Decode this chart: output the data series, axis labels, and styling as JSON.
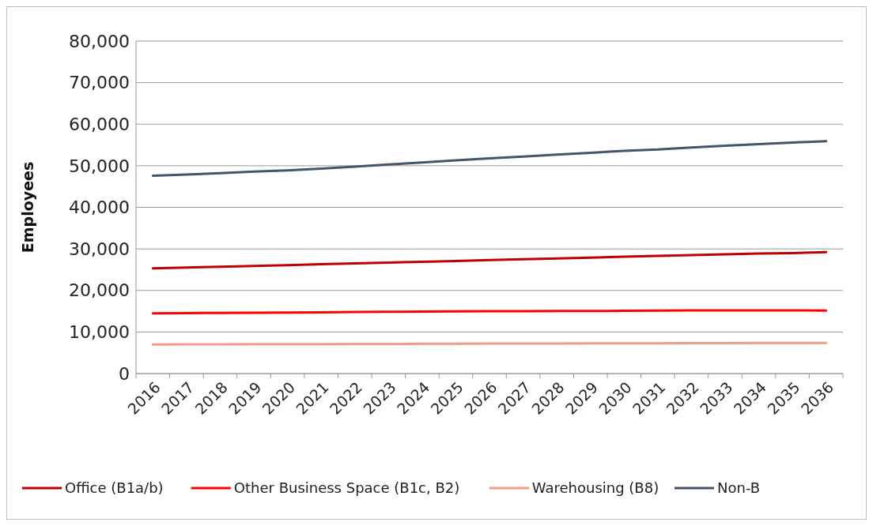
{
  "chart_data": {
    "type": "line",
    "ylabel": "Employees",
    "categories": [
      "2016",
      "2017",
      "2018",
      "2019",
      "2020",
      "2021",
      "2022",
      "2023",
      "2024",
      "2025",
      "2026",
      "2027",
      "2028",
      "2029",
      "2030",
      "2031",
      "2032",
      "2033",
      "2034",
      "2035",
      "2036"
    ],
    "series": [
      {
        "name": "Office (B1a/b)",
        "color": "#c00000",
        "values": [
          25300,
          25500,
          25700,
          25900,
          26100,
          26300,
          26500,
          26700,
          26900,
          27100,
          27300,
          27500,
          27700,
          27900,
          28100,
          28300,
          28500,
          28700,
          28900,
          29000,
          29200
        ]
      },
      {
        "name": "Other Business Space (B1c, B2)",
        "color": "#ff0000",
        "values": [
          14500,
          14550,
          14600,
          14650,
          14700,
          14750,
          14800,
          14850,
          14900,
          14950,
          15000,
          15000,
          15050,
          15050,
          15100,
          15150,
          15200,
          15200,
          15200,
          15200,
          15150
        ]
      },
      {
        "name": "Warehousing (B8)",
        "color": "#f4998c",
        "values": [
          7000,
          7020,
          7040,
          7060,
          7080,
          7100,
          7120,
          7140,
          7160,
          7180,
          7200,
          7220,
          7240,
          7250,
          7260,
          7280,
          7300,
          7320,
          7340,
          7360,
          7380
        ]
      },
      {
        "name": "Non-B",
        "color": "#44546a",
        "values": [
          47600,
          47900,
          48200,
          48600,
          48900,
          49300,
          49800,
          50300,
          50800,
          51300,
          51800,
          52200,
          52700,
          53100,
          53600,
          53900,
          54400,
          54800,
          55200,
          55600,
          55900
        ]
      }
    ],
    "ylim": [
      0,
      80000
    ],
    "yticks": [
      {
        "value": 0,
        "label": "0"
      },
      {
        "value": 10000,
        "label": "10,000"
      },
      {
        "value": 20000,
        "label": "20,000"
      },
      {
        "value": 30000,
        "label": "30,000"
      },
      {
        "value": 40000,
        "label": "40,000"
      },
      {
        "value": 50000,
        "label": "50,000"
      },
      {
        "value": 60000,
        "label": "60,000"
      },
      {
        "value": 70000,
        "label": "70,000"
      },
      {
        "value": 80000,
        "label": "80,000"
      }
    ],
    "grid": "y",
    "legend": "bottom",
    "marker": "none",
    "line_style": "solid"
  }
}
